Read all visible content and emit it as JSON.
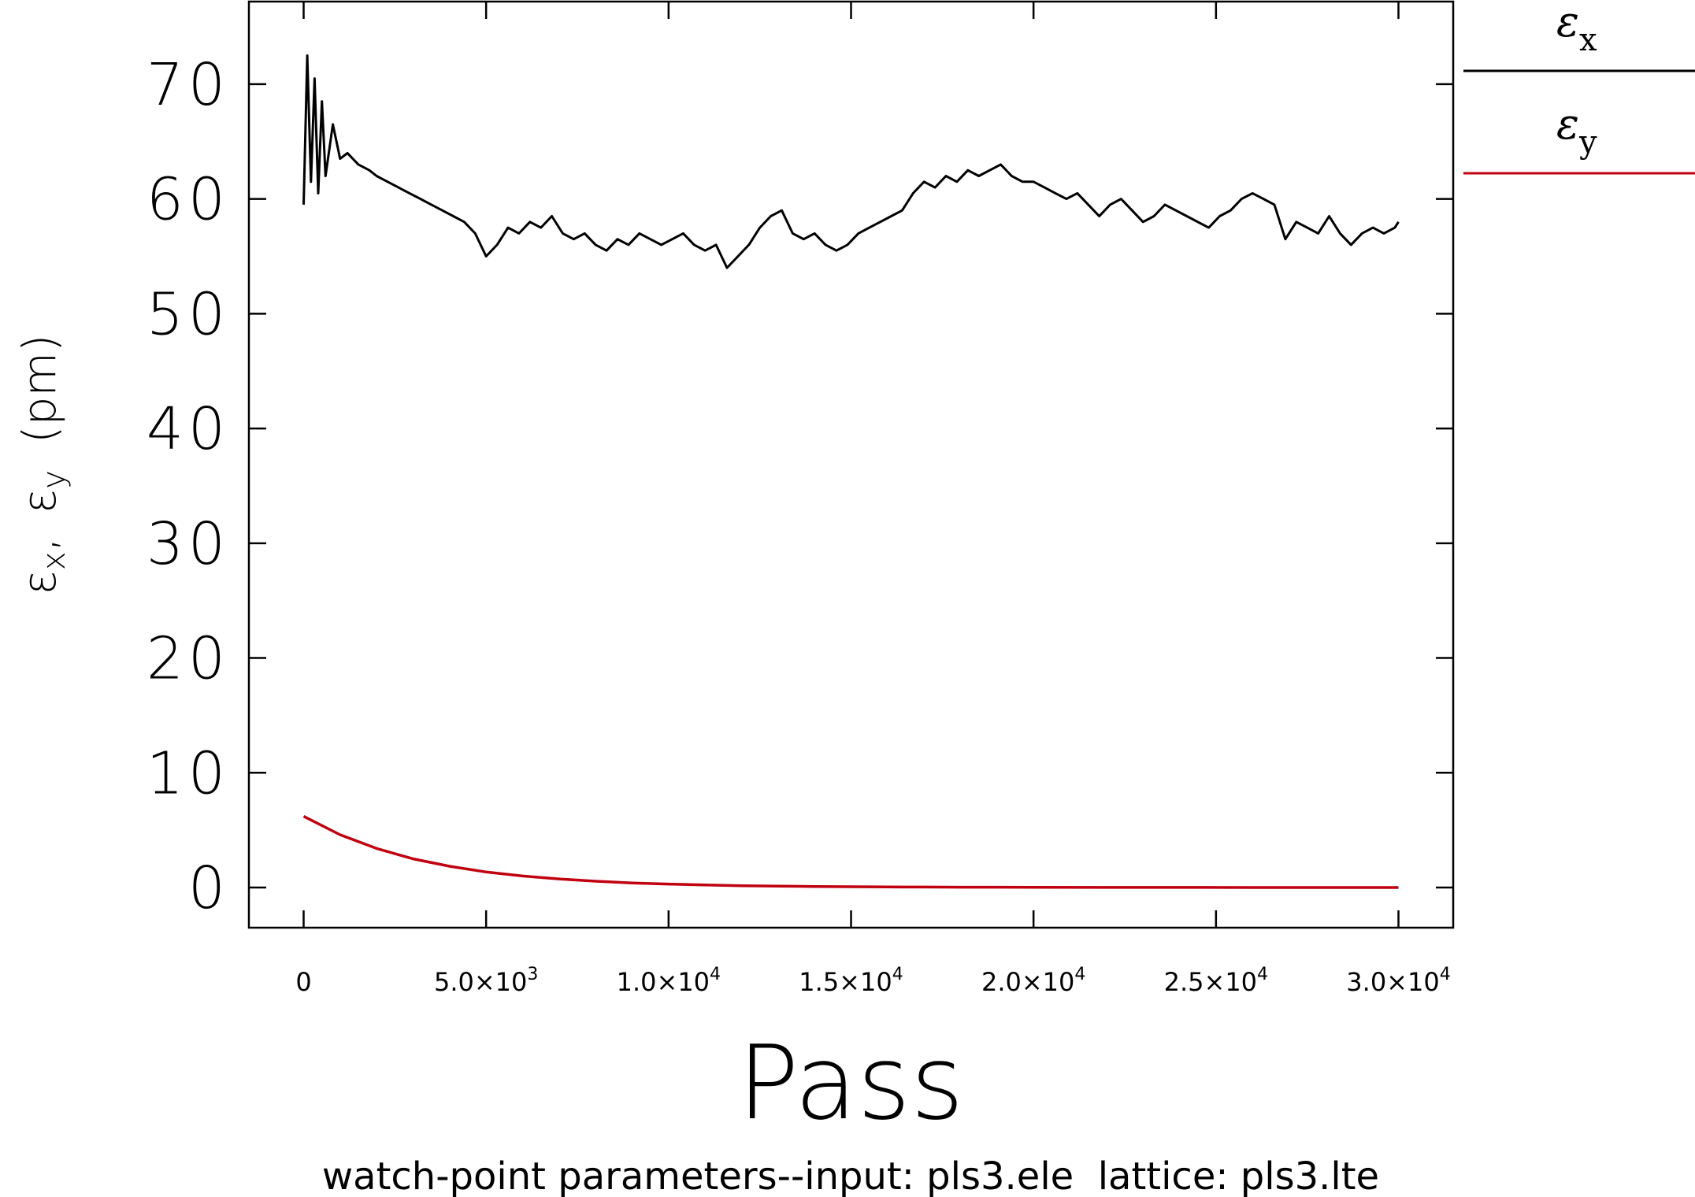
{
  "chart_data": {
    "type": "line",
    "xlabel": "Pass",
    "ylabel": "ε_x, ε_y (pm)",
    "ylabel_parts": {
      "eps": "ε",
      "sub_x": "x",
      "sep": ",",
      "sub_y": "y",
      "unit": "(pm)"
    },
    "caption": "watch-point parameters--input: pls3.ele  lattice: pls3.lte",
    "xlim": [
      -1500,
      31500
    ],
    "ylim": [
      -3.5,
      77.2
    ],
    "y_ticks": [
      {
        "value": 0,
        "label": "0"
      },
      {
        "value": 10,
        "label": "10"
      },
      {
        "value": 20,
        "label": "20"
      },
      {
        "value": 30,
        "label": "30"
      },
      {
        "value": 40,
        "label": "40"
      },
      {
        "value": 50,
        "label": "50"
      },
      {
        "value": 60,
        "label": "60"
      },
      {
        "value": 70,
        "label": "70"
      }
    ],
    "x_ticks": [
      {
        "value": 0,
        "mantissa": "0",
        "exp": ""
      },
      {
        "value": 5000,
        "mantissa": "5.0×10",
        "exp": "3"
      },
      {
        "value": 10000,
        "mantissa": "1.0×10",
        "exp": "4"
      },
      {
        "value": 15000,
        "mantissa": "1.5×10",
        "exp": "4"
      },
      {
        "value": 20000,
        "mantissa": "2.0×10",
        "exp": "4"
      },
      {
        "value": 25000,
        "mantissa": "2.5×10",
        "exp": "4"
      },
      {
        "value": 30000,
        "mantissa": "3.0×10",
        "exp": "4"
      }
    ],
    "grid": false,
    "legend_position": "right",
    "series": [
      {
        "name": "ε_x",
        "legend_symbol": "ε",
        "legend_sub": "x",
        "color": "#000000",
        "x": [
          0,
          100,
          200,
          300,
          400,
          500,
          600,
          800,
          1000,
          1200,
          1500,
          1800,
          2000,
          2300,
          2600,
          2900,
          3200,
          3500,
          3800,
          4100,
          4400,
          4700,
          5000,
          5300,
          5600,
          5900,
          6200,
          6500,
          6800,
          7100,
          7400,
          7700,
          8000,
          8300,
          8600,
          8900,
          9200,
          9500,
          9800,
          10100,
          10400,
          10700,
          11000,
          11300,
          11600,
          11900,
          12200,
          12500,
          12800,
          13100,
          13400,
          13700,
          14000,
          14300,
          14600,
          14900,
          15200,
          15500,
          15800,
          16100,
          16400,
          16700,
          17000,
          17300,
          17600,
          17900,
          18200,
          18500,
          18800,
          19100,
          19400,
          19700,
          20000,
          20300,
          20600,
          20900,
          21200,
          21500,
          21800,
          22100,
          22400,
          22700,
          23000,
          23300,
          23600,
          23900,
          24200,
          24500,
          24800,
          25100,
          25400,
          25700,
          26000,
          26300,
          26600,
          26900,
          27200,
          27500,
          27800,
          28100,
          28400,
          28700,
          29000,
          29300,
          29600,
          29900,
          30000
        ],
        "y": [
          59.5,
          72.5,
          61.5,
          70.5,
          60.5,
          68.5,
          62.0,
          66.5,
          63.5,
          64.0,
          63.0,
          62.5,
          62.0,
          61.5,
          61.0,
          60.5,
          60.0,
          59.5,
          59.0,
          58.5,
          58.0,
          57.0,
          55.0,
          56.0,
          57.5,
          57.0,
          58.0,
          57.5,
          58.5,
          57.0,
          56.5,
          57.0,
          56.0,
          55.5,
          56.5,
          56.0,
          57.0,
          56.5,
          56.0,
          56.5,
          57.0,
          56.0,
          55.5,
          56.0,
          54.0,
          55.0,
          56.0,
          57.5,
          58.5,
          59.0,
          57.0,
          56.5,
          57.0,
          56.0,
          55.5,
          56.0,
          57.0,
          57.5,
          58.0,
          58.5,
          59.0,
          60.5,
          61.5,
          61.0,
          62.0,
          61.5,
          62.5,
          62.0,
          62.5,
          63.0,
          62.0,
          61.5,
          61.5,
          61.0,
          60.5,
          60.0,
          60.5,
          59.5,
          58.5,
          59.5,
          60.0,
          59.0,
          58.0,
          58.5,
          59.5,
          59.0,
          58.5,
          58.0,
          57.5,
          58.5,
          59.0,
          60.0,
          60.5,
          60.0,
          59.5,
          56.5,
          58.0,
          57.5,
          57.0,
          58.5,
          57.0,
          56.0,
          57.0,
          57.5,
          57.0,
          57.5,
          58.0
        ]
      },
      {
        "name": "ε_y",
        "legend_symbol": "ε",
        "legend_sub": "y",
        "color": "#c0000f",
        "x": [
          0,
          1000,
          2000,
          3000,
          4000,
          5000,
          6000,
          7000,
          8000,
          9000,
          10000,
          11000,
          12000,
          13000,
          14000,
          15000,
          16000,
          17000,
          18000,
          20000,
          22000,
          24000,
          26000,
          28000,
          30000
        ],
        "y": [
          6.2,
          4.6,
          3.4,
          2.5,
          1.85,
          1.35,
          1.0,
          0.75,
          0.55,
          0.4,
          0.3,
          0.22,
          0.16,
          0.12,
          0.09,
          0.07,
          0.05,
          0.04,
          0.03,
          0.02,
          0.01,
          0.01,
          0.0,
          0.0,
          0.0
        ]
      }
    ]
  }
}
